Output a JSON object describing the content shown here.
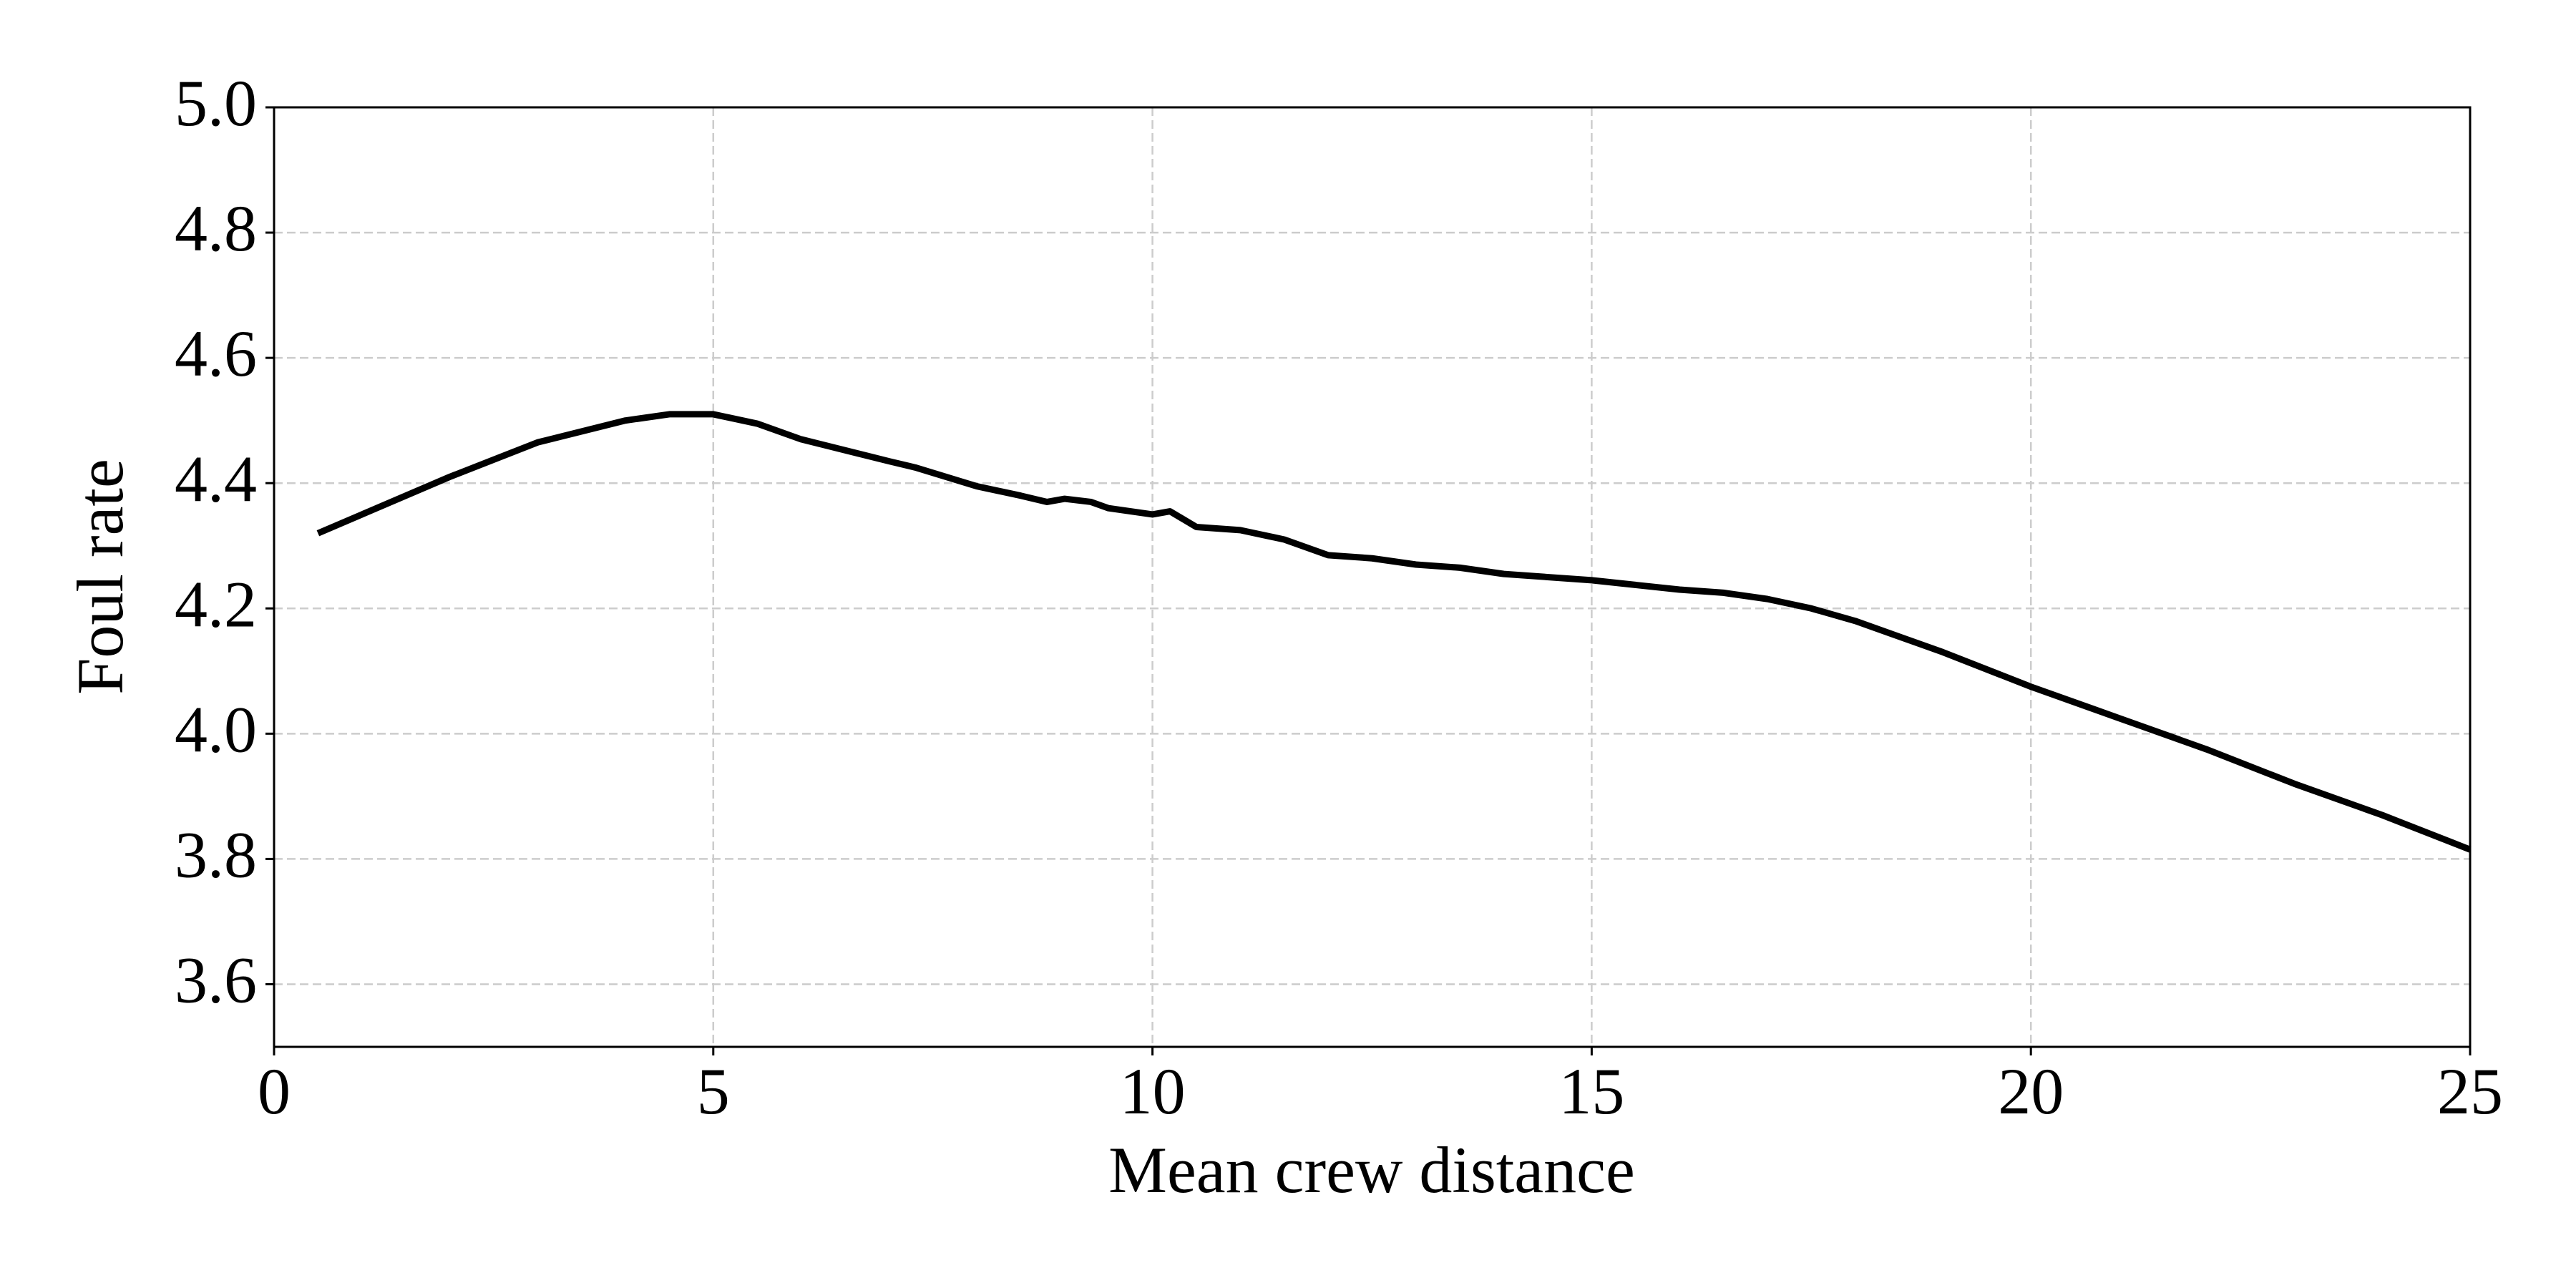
{
  "chart_data": {
    "type": "line",
    "xlabel": "Mean crew distance",
    "ylabel": "Foul rate",
    "x": [
      0.5,
      1,
      2,
      3,
      4,
      4.5,
      5,
      5.5,
      6,
      7,
      7.3,
      8,
      8.5,
      8.8,
      9,
      9.3,
      9.5,
      10,
      10.2,
      10.5,
      11,
      11.5,
      12,
      12.5,
      13,
      13.5,
      14,
      15,
      16,
      16.5,
      17,
      17.5,
      18,
      19,
      20,
      21,
      22,
      23,
      24,
      25
    ],
    "series": [
      {
        "color": "#000000",
        "values": [
          4.32,
          4.35,
          4.41,
          4.465,
          4.5,
          4.51,
          4.51,
          4.495,
          4.47,
          4.435,
          4.425,
          4.395,
          4.38,
          4.37,
          4.375,
          4.37,
          4.36,
          4.35,
          4.355,
          4.33,
          4.325,
          4.31,
          4.285,
          4.28,
          4.27,
          4.265,
          4.255,
          4.245,
          4.23,
          4.225,
          4.215,
          4.2,
          4.18,
          4.13,
          4.075,
          4.025,
          3.975,
          3.92,
          3.87,
          3.815
        ]
      }
    ],
    "xlim": [
      0,
      25
    ],
    "xticks": [
      0,
      5,
      10,
      15,
      20,
      25
    ],
    "ylim": [
      3.5,
      5.0
    ],
    "yticks": [
      3.6,
      3.8,
      {
        "value": 4.0,
        "label": "4.0"
      },
      4.2,
      4.4,
      4.6,
      4.8,
      {
        "value": 5.0,
        "label": "5.0"
      }
    ],
    "grid": true
  }
}
